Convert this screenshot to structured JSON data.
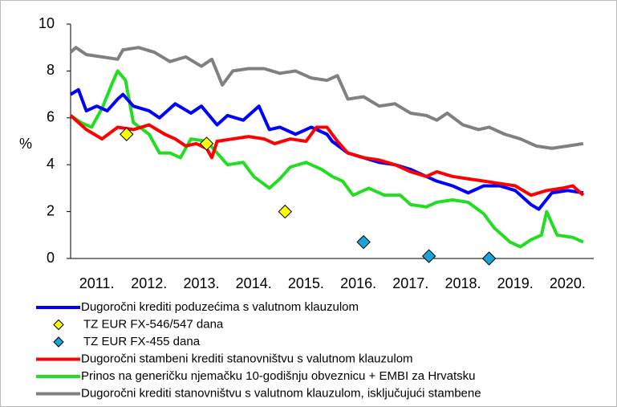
{
  "chart_data": {
    "type": "line",
    "y_label": "%",
    "ylim": [
      0,
      10
    ],
    "yticks": [
      0,
      2,
      4,
      6,
      8,
      10
    ],
    "xlim": [
      2011,
      2021
    ],
    "xticks": [
      {
        "value": 2011.5,
        "label": "2011."
      },
      {
        "value": 2012.5,
        "label": "2012."
      },
      {
        "value": 2013.5,
        "label": "2013."
      },
      {
        "value": 2014.5,
        "label": "2014."
      },
      {
        "value": 2015.5,
        "label": "2015."
      },
      {
        "value": 2016.5,
        "label": "2016."
      },
      {
        "value": 2017.5,
        "label": "2017."
      },
      {
        "value": 2018.5,
        "label": "2018."
      },
      {
        "value": 2019.5,
        "label": "2019."
      },
      {
        "value": 2020.5,
        "label": "2020."
      }
    ],
    "series": [
      {
        "name": "Dugoročni krediti poduzećima s valutnom klauzulom",
        "type": "line",
        "color": "#0000ff",
        "x": [
          2011.0,
          2011.15,
          2011.3,
          2011.5,
          2011.7,
          2011.9,
          2012.0,
          2012.2,
          2012.5,
          2012.7,
          2013.0,
          2013.3,
          2013.5,
          2013.8,
          2014.0,
          2014.3,
          2014.6,
          2014.8,
          2015.0,
          2015.3,
          2015.6,
          2015.9,
          2016.0,
          2016.3,
          2016.6,
          2016.9,
          2017.2,
          2017.5,
          2017.8,
          2018.0,
          2018.3,
          2018.6,
          2018.9,
          2019.2,
          2019.5,
          2019.8,
          2019.95,
          2020.2,
          2020.5,
          2020.8
        ],
        "values": [
          7.0,
          7.2,
          6.3,
          6.5,
          6.3,
          6.8,
          7.0,
          6.5,
          6.3,
          6.0,
          6.6,
          6.2,
          6.5,
          5.7,
          6.1,
          5.9,
          6.5,
          5.5,
          5.6,
          5.3,
          5.6,
          5.3,
          5.0,
          4.5,
          4.3,
          4.1,
          4.0,
          3.8,
          3.5,
          3.3,
          3.1,
          2.8,
          3.1,
          3.1,
          2.9,
          2.3,
          2.1,
          2.8,
          2.9,
          2.8
        ]
      },
      {
        "name": "TZ EUR FX-546/547 dana",
        "type": "scatter",
        "color": "#ffff00",
        "x": [
          2012.07,
          2013.6,
          2015.1
        ],
        "values": [
          5.3,
          4.9,
          2.0
        ]
      },
      {
        "name": "TZ EUR FX-455 dana",
        "type": "scatter",
        "color": "#1aa3d9",
        "x": [
          2016.6,
          2017.85,
          2019.0
        ],
        "values": [
          0.7,
          0.1,
          0.0
        ]
      },
      {
        "name": "Dugoročni stambeni krediti stanovništvu s valutnom klauzulom",
        "type": "line",
        "color": "#ff0000",
        "x": [
          2011.0,
          2011.3,
          2011.6,
          2011.9,
          2012.2,
          2012.5,
          2012.8,
          2013.0,
          2013.2,
          2013.4,
          2013.6,
          2013.7,
          2013.8,
          2014.1,
          2014.4,
          2014.7,
          2014.9,
          2015.2,
          2015.5,
          2015.7,
          2015.9,
          2016.1,
          2016.3,
          2016.6,
          2016.9,
          2017.2,
          2017.5,
          2017.8,
          2018.0,
          2018.3,
          2018.6,
          2018.9,
          2019.2,
          2019.5,
          2019.8,
          2020.1,
          2020.4,
          2020.6,
          2020.8
        ],
        "values": [
          6.1,
          5.5,
          5.1,
          5.6,
          5.5,
          5.7,
          5.3,
          5.1,
          4.8,
          4.9,
          4.7,
          4.3,
          5.0,
          5.1,
          5.2,
          5.1,
          4.9,
          5.1,
          5.0,
          5.6,
          5.6,
          5.0,
          4.5,
          4.3,
          4.2,
          4.0,
          3.7,
          3.5,
          3.7,
          3.5,
          3.4,
          3.3,
          3.2,
          3.1,
          2.7,
          2.9,
          3.0,
          3.1,
          2.7
        ]
      },
      {
        "name": "Prinos na generičku njemačku 10-godišnju obveznicu + EMBI za Hrvatsku",
        "type": "line",
        "color": "#22dd22",
        "x": [
          2011.0,
          2011.2,
          2011.4,
          2011.6,
          2011.8,
          2011.9,
          2012.05,
          2012.2,
          2012.5,
          2012.7,
          2012.9,
          2013.1,
          2013.3,
          2013.6,
          2013.8,
          2014.0,
          2014.3,
          2014.5,
          2014.8,
          2015.0,
          2015.2,
          2015.5,
          2015.8,
          2016.0,
          2016.2,
          2016.4,
          2016.7,
          2017.0,
          2017.3,
          2017.5,
          2017.8,
          2018.0,
          2018.3,
          2018.6,
          2018.9,
          2019.1,
          2019.4,
          2019.6,
          2019.8,
          2020.0,
          2020.1,
          2020.3,
          2020.6,
          2020.8
        ],
        "values": [
          6.1,
          5.8,
          5.6,
          6.4,
          7.5,
          8.0,
          7.6,
          5.8,
          5.3,
          4.5,
          4.5,
          4.3,
          5.1,
          5.0,
          4.5,
          4.0,
          4.1,
          3.5,
          3.0,
          3.4,
          3.9,
          4.1,
          3.8,
          3.5,
          3.3,
          2.7,
          3.0,
          2.7,
          2.7,
          2.3,
          2.2,
          2.4,
          2.5,
          2.4,
          1.9,
          1.3,
          0.7,
          0.5,
          0.8,
          1.0,
          2.0,
          1.0,
          0.9,
          0.7
        ]
      },
      {
        "name": "Dugoročni krediti stanovništvu s valutnom klauzulom, isključujući stambene",
        "type": "line",
        "color": "#808080",
        "x": [
          2011.0,
          2011.1,
          2011.3,
          2011.6,
          2011.9,
          2012.0,
          2012.3,
          2012.6,
          2012.9,
          2013.2,
          2013.5,
          2013.7,
          2013.9,
          2014.1,
          2014.4,
          2014.7,
          2015.0,
          2015.3,
          2015.6,
          2015.9,
          2016.1,
          2016.3,
          2016.6,
          2016.9,
          2017.2,
          2017.5,
          2017.8,
          2018.0,
          2018.2,
          2018.5,
          2018.8,
          2019.0,
          2019.3,
          2019.6,
          2019.9,
          2020.2,
          2020.5,
          2020.8
        ],
        "values": [
          8.8,
          9.0,
          8.7,
          8.6,
          8.5,
          8.9,
          9.0,
          8.8,
          8.4,
          8.6,
          8.2,
          8.5,
          7.4,
          8.0,
          8.1,
          8.1,
          7.9,
          8.0,
          7.7,
          7.6,
          7.8,
          6.8,
          6.9,
          6.5,
          6.6,
          6.2,
          6.1,
          5.9,
          6.2,
          5.7,
          5.5,
          5.6,
          5.3,
          5.1,
          4.8,
          4.7,
          4.8,
          4.9
        ]
      }
    ]
  }
}
